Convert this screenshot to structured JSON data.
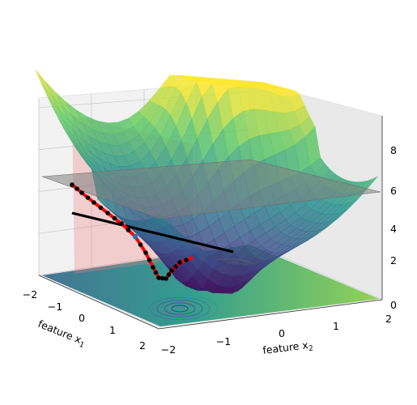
{
  "chart_data": {
    "type": "surface",
    "xlabel": "feature x",
    "xlabel_sub": "1",
    "ylabel": "feature x",
    "ylabel_sub": "2",
    "xlim": [
      -2,
      2
    ],
    "ylim": [
      -2,
      2
    ],
    "zlim": [
      0,
      9.5
    ],
    "x_ticks": [
      "−2",
      "−1",
      "0",
      "1",
      "2"
    ],
    "y_ticks": [
      "−2",
      "−1",
      "0",
      "1",
      "2"
    ],
    "z_ticks": [
      "0",
      "2",
      "4",
      "6",
      "8"
    ],
    "surface": {
      "colormap": "viridis",
      "peak_value": 9.3,
      "minimum_value": 0.5
    },
    "tangent_plane": {
      "z_value": 5.6,
      "color": "#808080"
    },
    "vertical_plane": {
      "color": "#f08080"
    },
    "path_on_surface": {
      "color": "#ff0000",
      "marker_color": "#000000",
      "points": 26
    },
    "tangent_line": {
      "color": "#000000"
    },
    "contour_floor": {
      "colormap": "viridis",
      "levels": 10
    }
  }
}
